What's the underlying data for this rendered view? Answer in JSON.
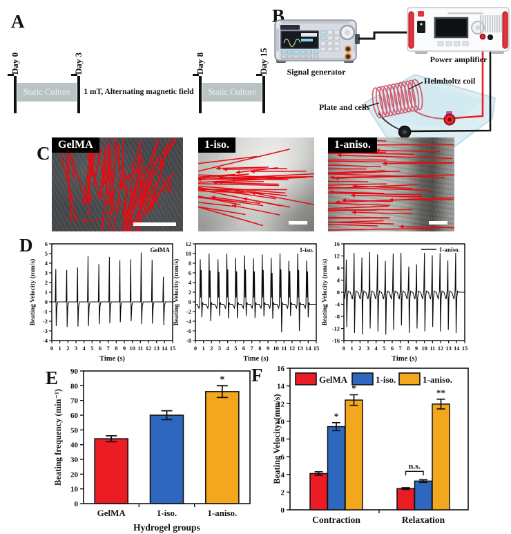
{
  "figure": {
    "panel_labels": {
      "a": "A",
      "b": "B",
      "c": "C",
      "d": "D",
      "e": "E",
      "f": "F"
    },
    "colors": {
      "red": "#ec1c24",
      "blue": "#2d68be",
      "orange": "#f3a71d",
      "arrow": "#e50b12"
    },
    "panel_a": {
      "days": [
        "Day 0",
        "Day 3",
        "Day 8",
        "Day 15"
      ],
      "static_culture_1": "Static Culture",
      "field_label": "1 mT, Alternating magnetic field",
      "static_culture_2": "Static Culture"
    },
    "panel_b": {
      "signal_generator": "Signal generator",
      "power_amplifier": "Power amplifier",
      "helmholtz_coil": "Helmholtz coil",
      "plate_and_cells": "Plate and cells"
    },
    "panel_c": {
      "images": [
        {
          "label": "GelMA",
          "arrow_mode": "fan_down",
          "arrow_count": 58,
          "seed": 7
        },
        {
          "label": "1-iso.",
          "arrow_mode": "sweep_left",
          "arrow_count": 34,
          "seed": 11
        },
        {
          "label": "1-aniso.",
          "arrow_mode": "dense_left",
          "arrow_count": 42,
          "seed": 23
        }
      ]
    }
  },
  "chart_data": [
    {
      "id": "d1",
      "type": "line",
      "panel": "D",
      "legend": "GelMA",
      "legend_line": false,
      "xlabel": "Time (s)",
      "ylabel": "Beating Velocity (mm/s)",
      "xlim": [
        0,
        15
      ],
      "xtick_step": 1,
      "ylim": [
        -4,
        6
      ],
      "ytick_step": 1,
      "waveform": "single",
      "baseline": 0,
      "beats": [
        {
          "t": 0.5,
          "peak": 3.4,
          "dip": -2.5
        },
        {
          "t": 1.85,
          "peak": 3.3,
          "dip": -2.6
        },
        {
          "t": 3.2,
          "peak": 3.55,
          "dip": -2.55
        },
        {
          "t": 4.5,
          "peak": 4.75,
          "dip": -2.5
        },
        {
          "t": 5.85,
          "peak": 3.9,
          "dip": -2.3
        },
        {
          "t": 7.15,
          "peak": 4.65,
          "dip": -2.2
        },
        {
          "t": 8.45,
          "peak": 4.3,
          "dip": -2.1
        },
        {
          "t": 9.8,
          "peak": 4.4,
          "dip": -2.0
        },
        {
          "t": 11.1,
          "peak": 5.1,
          "dip": -2.3
        },
        {
          "t": 12.45,
          "peak": 4.35,
          "dip": -2.25
        },
        {
          "t": 13.85,
          "peak": 2.6,
          "dip": -2.4
        }
      ]
    },
    {
      "id": "d2",
      "type": "line",
      "panel": "D",
      "legend": "1-iso.",
      "legend_line": false,
      "xlabel": "Time (s)",
      "ylabel": "Beating Velocity (mm/s)",
      "xlim": [
        0,
        15
      ],
      "xtick_step": 1,
      "ylim": [
        -8,
        12
      ],
      "ytick_step": 2,
      "waveform": "double",
      "baseline": -0.5,
      "beats": [
        {
          "t": 0.6,
          "peak": 8.8,
          "second": 6.6,
          "dip": -3.2
        },
        {
          "t": 1.7,
          "peak": 10.0,
          "second": 6.5,
          "dip": -4.0
        },
        {
          "t": 2.8,
          "peak": 8.8,
          "second": 6.2,
          "dip": -2.9
        },
        {
          "t": 3.9,
          "peak": 10.0,
          "second": 6.7,
          "dip": -3.4
        },
        {
          "t": 5.0,
          "peak": 9.1,
          "second": 6.3,
          "dip": -3.4
        },
        {
          "t": 6.1,
          "peak": 9.6,
          "second": 6.7,
          "dip": -2.9
        },
        {
          "t": 7.2,
          "peak": 9.0,
          "second": 6.3,
          "dip": -3.3
        },
        {
          "t": 8.3,
          "peak": 9.8,
          "second": 6.6,
          "dip": -3.0
        },
        {
          "t": 9.4,
          "peak": 9.1,
          "second": 6.0,
          "dip": -3.5
        },
        {
          "t": 10.5,
          "peak": 10.0,
          "second": 6.7,
          "dip": -6.3
        },
        {
          "t": 11.6,
          "peak": 8.5,
          "second": 6.4,
          "dip": -2.9
        },
        {
          "t": 12.7,
          "peak": 10.0,
          "second": 6.6,
          "dip": -6.0
        },
        {
          "t": 13.8,
          "peak": 8.5,
          "second": 6.3,
          "dip": -3.2
        }
      ]
    },
    {
      "id": "d3",
      "type": "line",
      "panel": "D",
      "legend": "1-aniso.",
      "legend_line": true,
      "xlabel": "Time (s)",
      "ylabel": "Beating Velocity (mm/s)",
      "xlim": [
        0,
        15
      ],
      "xtick_step": 1,
      "ylim": [
        -16,
        16
      ],
      "ytick_step": 4,
      "waveform": "bipolar",
      "baseline": 0,
      "beats": [
        {
          "t": 0.3,
          "peak": 10.8,
          "dip": -11.5
        },
        {
          "t": 1.27,
          "peak": 13.0,
          "dip": -13.5
        },
        {
          "t": 2.24,
          "peak": 11.5,
          "dip": -14.0
        },
        {
          "t": 3.21,
          "peak": 13.3,
          "dip": -12.0
        },
        {
          "t": 4.18,
          "peak": 12.5,
          "dip": -13.0
        },
        {
          "t": 5.15,
          "peak": 10.3,
          "dip": -14.0
        },
        {
          "t": 6.12,
          "peak": 12.8,
          "dip": -12.5
        },
        {
          "t": 7.09,
          "peak": 13.0,
          "dip": -11.0
        },
        {
          "t": 8.06,
          "peak": 8.5,
          "dip": -13.5
        },
        {
          "t": 9.03,
          "peak": 9.2,
          "dip": -12.0
        },
        {
          "t": 10.0,
          "peak": 13.0,
          "dip": -13.0
        },
        {
          "t": 10.97,
          "peak": 12.2,
          "dip": -11.5
        },
        {
          "t": 11.94,
          "peak": 13.0,
          "dip": -13.0
        },
        {
          "t": 12.91,
          "peak": 10.5,
          "dip": -12.5
        },
        {
          "t": 13.88,
          "peak": 13.0,
          "dip": -13.5
        }
      ]
    },
    {
      "id": "e",
      "type": "bar",
      "panel": "E",
      "categories": [
        "GelMA",
        "1-iso.",
        "1-aniso."
      ],
      "values": [
        44,
        60,
        76
      ],
      "errors": [
        2,
        3,
        4
      ],
      "bar_colors": [
        "red",
        "blue",
        "orange"
      ],
      "sig": [
        "",
        "",
        "*"
      ],
      "xlabel": "Hydrogel groups",
      "ylabel": "Beating frequency (min⁻¹)",
      "ylim": [
        0,
        90
      ],
      "ytick_step": 10,
      "grid": false
    },
    {
      "id": "f",
      "type": "grouped_bar",
      "panel": "F",
      "categories": [
        "Contraction",
        "Relaxation"
      ],
      "series": [
        {
          "name": "GelMA",
          "color": "red",
          "values": [
            4.1,
            2.4
          ],
          "errors": [
            0.2,
            0.1
          ]
        },
        {
          "name": "1-iso.",
          "color": "blue",
          "values": [
            9.4,
            3.25
          ],
          "errors": [
            0.45,
            0.15
          ]
        },
        {
          "name": "1-aniso.",
          "color": "orange",
          "values": [
            12.4,
            11.95
          ],
          "errors": [
            0.6,
            0.55
          ]
        }
      ],
      "sig": [
        {
          "series": "1-iso.",
          "category": "Contraction",
          "label": "*"
        },
        {
          "series": "1-aniso.",
          "category": "Contraction",
          "label": "*"
        },
        {
          "series": "1-aniso.",
          "category": "Relaxation",
          "label": "**"
        }
      ],
      "ns_bracket": {
        "category": "Relaxation",
        "between": [
          "GelMA",
          "1-iso."
        ],
        "label": "n.s.",
        "height": 4.35
      },
      "xlabel": "",
      "ylabel": "Beating Velocityv(mm/s)",
      "ylim": [
        0,
        16
      ],
      "ytick_step": 2,
      "legend_position": "top",
      "grid": false
    }
  ]
}
